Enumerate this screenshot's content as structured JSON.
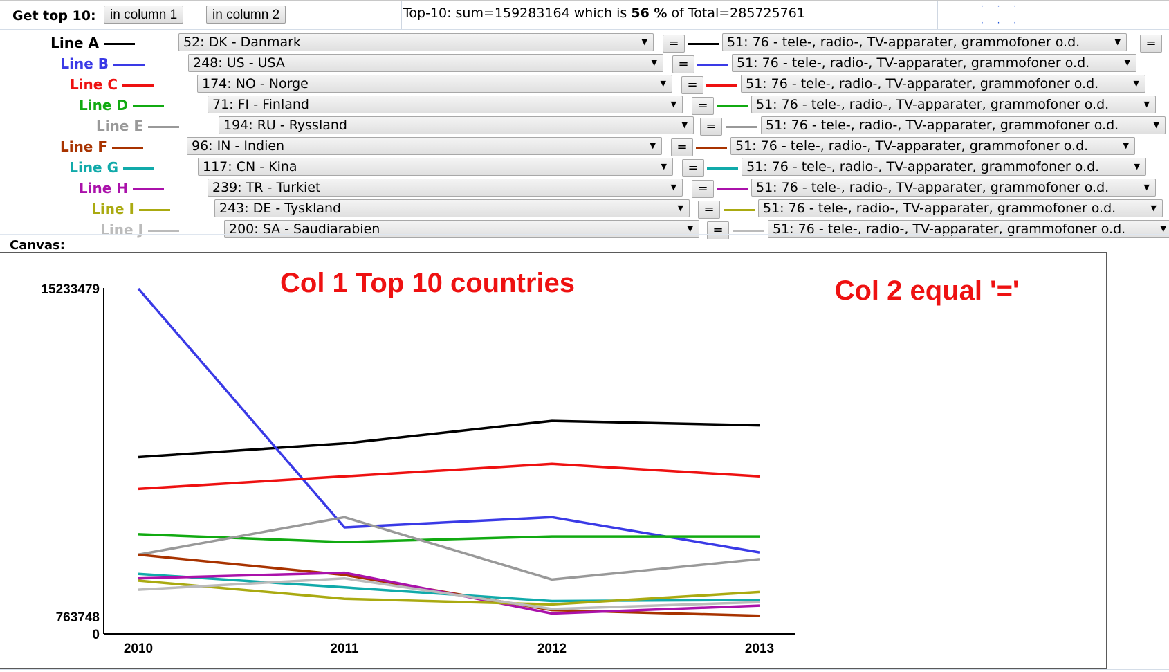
{
  "header": {
    "get_top_label": "Get top 10:",
    "btn_col1": "in column 1",
    "btn_col2": "in column 2",
    "summary_prefix": "Top-10: sum=159283164 which is ",
    "summary_pct": "56 %",
    "summary_suffix": " of Total=285725761"
  },
  "lines": [
    {
      "label": "Line A",
      "color": "#000000",
      "col1": "52: DK - Danmark",
      "col2": "51: 76 - tele-, radio-, TV-apparater, grammofoner o.d.",
      "eq": "="
    },
    {
      "label": "Line B",
      "color": "#3a3ae6",
      "col1": "248: US - USA",
      "col2": "51: 76 - tele-, radio-, TV-apparater, grammofoner o.d.",
      "eq": "="
    },
    {
      "label": "Line C",
      "color": "#ee1111",
      "col1": "174: NO - Norge",
      "col2": "51: 76 - tele-, radio-, TV-apparater, grammofoner o.d.",
      "eq": "="
    },
    {
      "label": "Line D",
      "color": "#11aa11",
      "col1": "71: FI - Finland",
      "col2": "51: 76 - tele-, radio-, TV-apparater, grammofoner o.d.",
      "eq": "="
    },
    {
      "label": "Line E",
      "color": "#999999",
      "col1": "194: RU - Ryssland",
      "col2": "51: 76 - tele-, radio-, TV-apparater, grammofoner o.d.",
      "eq": "="
    },
    {
      "label": "Line F",
      "color": "#a83300",
      "col1": "96: IN - Indien",
      "col2": "51: 76 - tele-, radio-, TV-apparater, grammofoner o.d.",
      "eq": "="
    },
    {
      "label": "Line G",
      "color": "#11aaaa",
      "col1": "117: CN - Kina",
      "col2": "51: 76 - tele-, radio-, TV-apparater, grammofoner o.d.",
      "eq": "="
    },
    {
      "label": "Line H",
      "color": "#aa11aa",
      "col1": "239: TR - Turkiet",
      "col2": "51: 76 - tele-, radio-, TV-apparater, grammofoner o.d.",
      "eq": "="
    },
    {
      "label": "Line I",
      "color": "#aaaa11",
      "col1": "243: DE - Tyskland",
      "col2": "51: 76 - tele-, radio-, TV-apparater, grammofoner o.d.",
      "eq": "="
    },
    {
      "label": "Line J",
      "color": "#bbbbbb",
      "col1": "200: SA - Saudiarabien",
      "col2": "51: 76 - tele-, radio-, TV-apparater, grammofoner o.d.",
      "eq": "="
    }
  ],
  "canvas_label": "Canvas:",
  "chart_data": {
    "type": "line",
    "title": "Col 1 Top 10 countries",
    "subtitle": "Col 2 equal '='",
    "title_color": "#ee1111",
    "x": [
      "2010",
      "2011",
      "2012",
      "2013"
    ],
    "y_tick_labels": [
      "15233479",
      "763748",
      "0"
    ],
    "ylim": [
      0,
      15233479
    ],
    "grid": false,
    "series": [
      {
        "name": "Line A",
        "color": "#000000",
        "values": [
          7800000,
          8400000,
          9400000,
          9200000
        ]
      },
      {
        "name": "Line B",
        "color": "#3a3ae6",
        "values": [
          15233479,
          4700000,
          5150000,
          3600000
        ]
      },
      {
        "name": "Line C",
        "color": "#ee1111",
        "values": [
          6400000,
          6950000,
          7500000,
          6950000
        ]
      },
      {
        "name": "Line D",
        "color": "#11aa11",
        "values": [
          4400000,
          4050000,
          4300000,
          4300000
        ]
      },
      {
        "name": "Line E",
        "color": "#999999",
        "values": [
          3500000,
          5150000,
          2400000,
          3300000
        ]
      },
      {
        "name": "Line F",
        "color": "#a83300",
        "values": [
          3500000,
          2600000,
          1050000,
          800000
        ]
      },
      {
        "name": "Line G",
        "color": "#11aaaa",
        "values": [
          2650000,
          2050000,
          1450000,
          1500000
        ]
      },
      {
        "name": "Line H",
        "color": "#aa11aa",
        "values": [
          2450000,
          2700000,
          900000,
          1250000
        ]
      },
      {
        "name": "Line I",
        "color": "#aaaa11",
        "values": [
          2350000,
          1550000,
          1300000,
          1850000
        ]
      },
      {
        "name": "Line J",
        "color": "#bbbbbb",
        "values": [
          1950000,
          2450000,
          1100000,
          1400000
        ]
      }
    ]
  }
}
